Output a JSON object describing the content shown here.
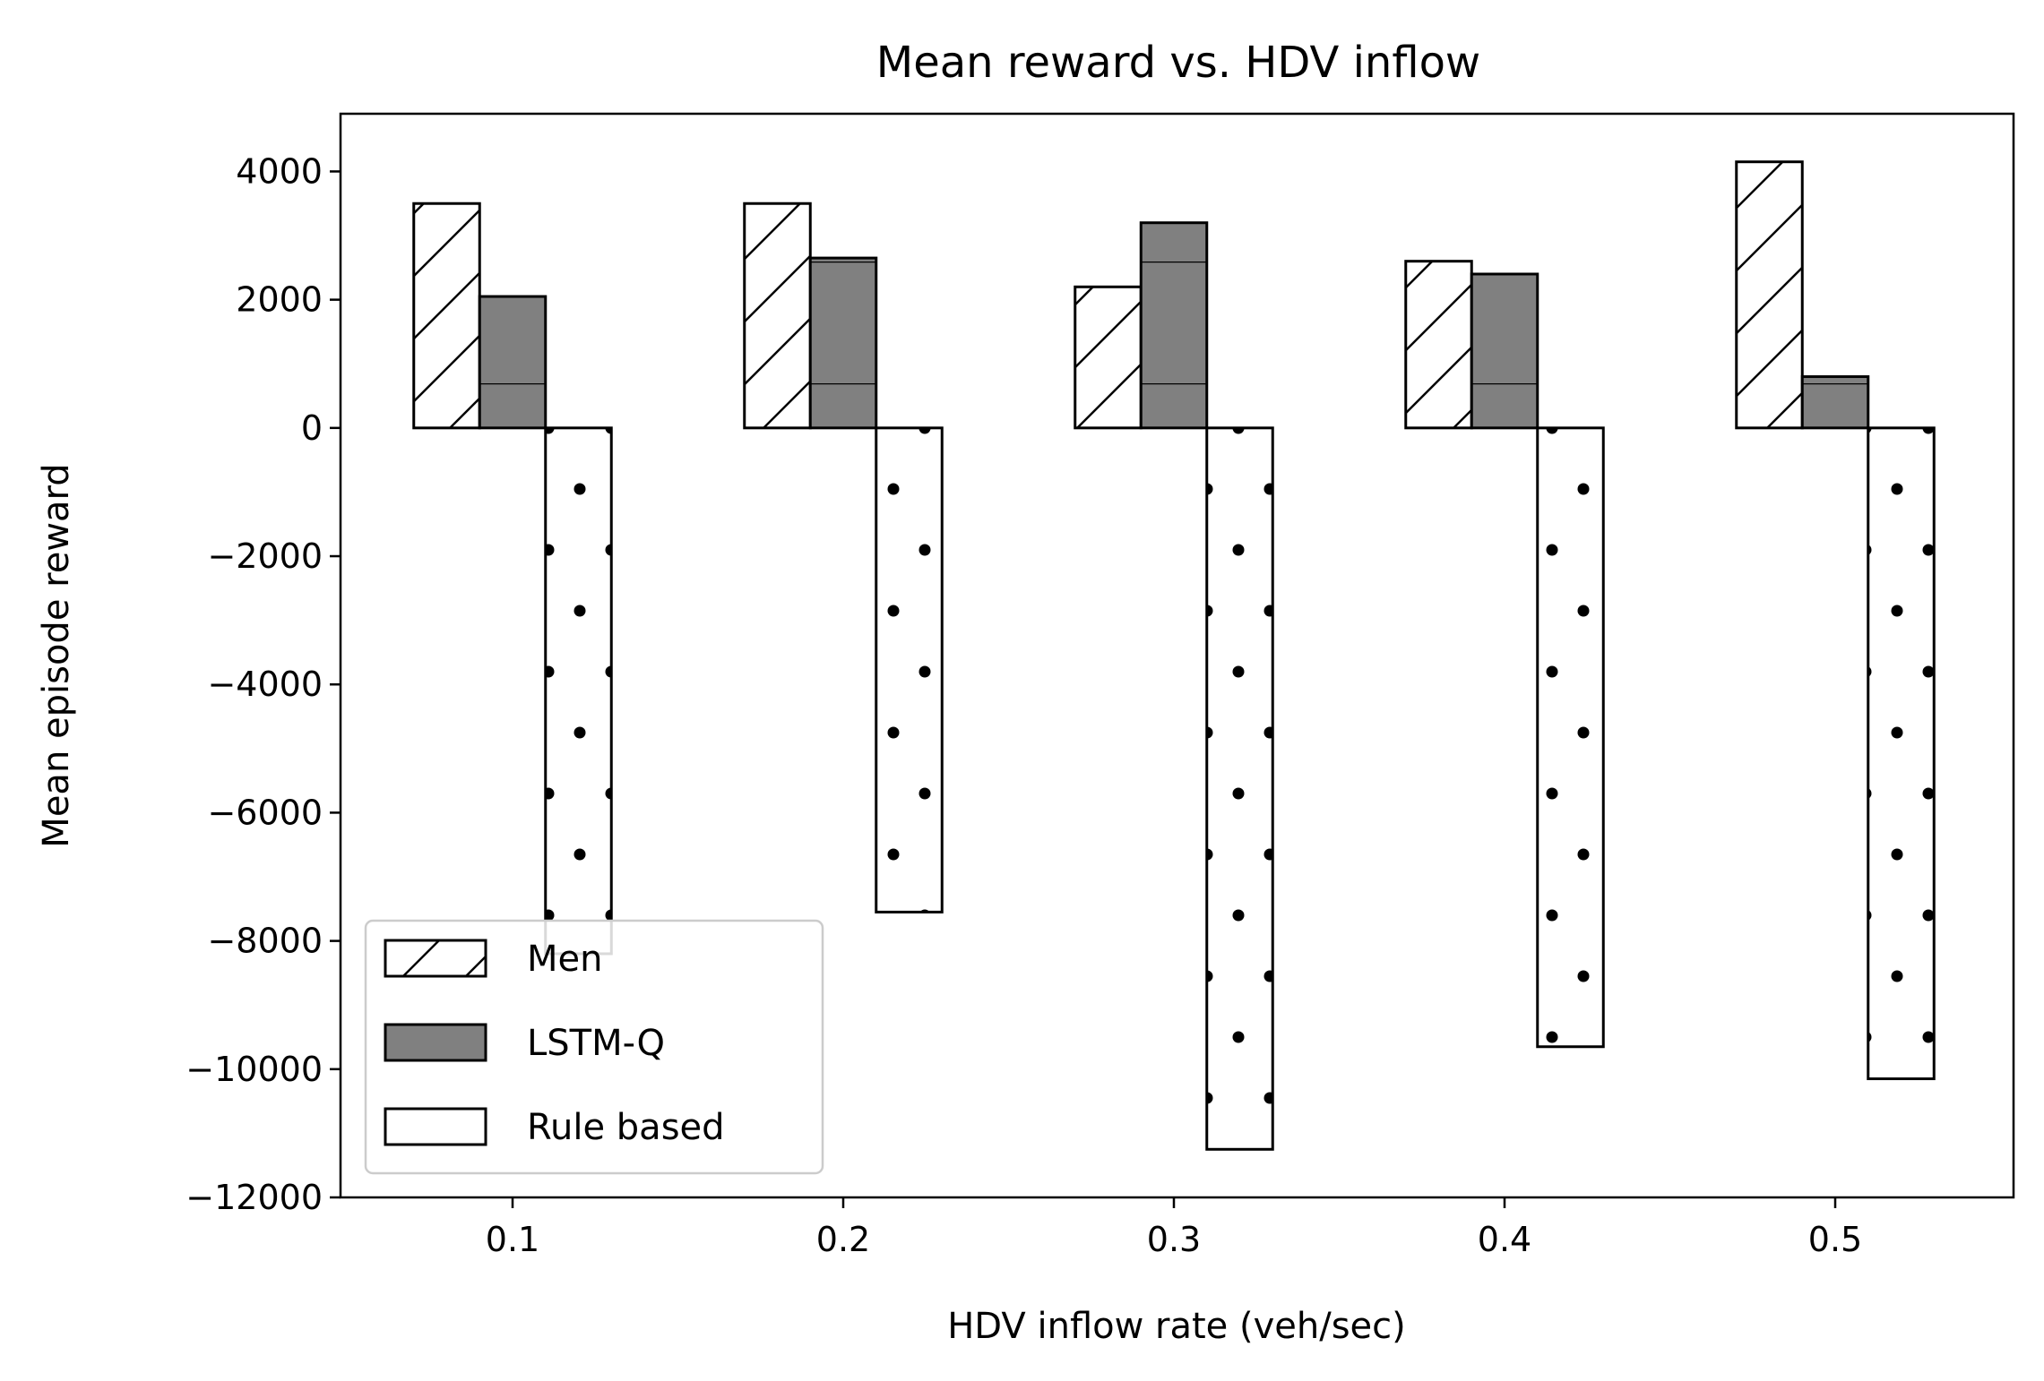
{
  "chart_data": {
    "type": "bar",
    "title": "Mean reward vs. HDV inflow",
    "xlabel": "HDV inflow rate (veh/sec)",
    "ylabel": "Mean episode reward",
    "categories": [
      "0.1",
      "0.2",
      "0.3",
      "0.4",
      "0.5"
    ],
    "series": [
      {
        "name": "Men",
        "values": [
          3500,
          3500,
          2200,
          2600,
          4150
        ],
        "fill": "#ffffff",
        "pattern": "hatch-diagonal"
      },
      {
        "name": "LSTM-Q",
        "values": [
          2050,
          2650,
          3200,
          2400,
          800
        ],
        "fill": "#808080",
        "pattern": "hatch-horizontal"
      },
      {
        "name": "Rule based",
        "values": [
          -8200,
          -7550,
          -11250,
          -9650,
          -10150
        ],
        "fill": "#ffffff",
        "pattern": "dots"
      }
    ],
    "ylim": [
      -12000,
      4900
    ],
    "yticks": [
      4000,
      2000,
      0,
      -2000,
      -4000,
      -6000,
      -8000,
      -10000,
      -12000
    ],
    "ytick_labels": [
      "4000",
      "2000",
      "0",
      "−2000",
      "−4000",
      "−6000",
      "−8000",
      "−10000",
      "−12000"
    ],
    "legend_position": "lower-left",
    "grid": false
  }
}
